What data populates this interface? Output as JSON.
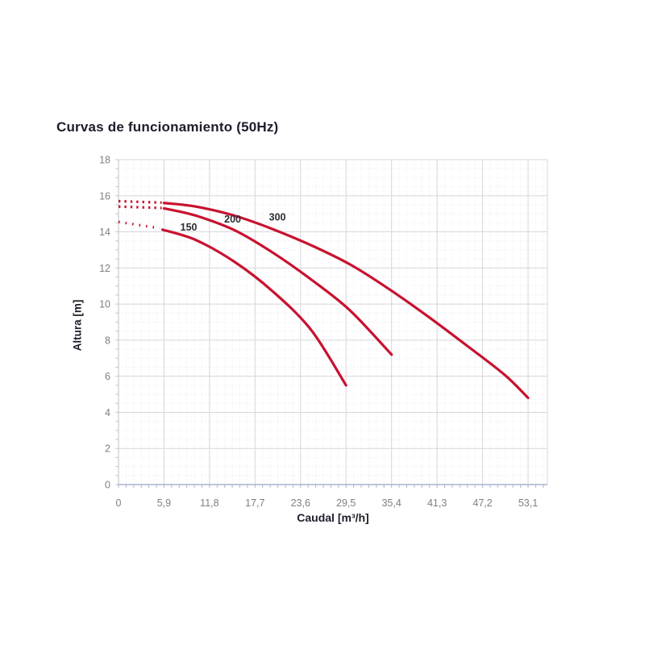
{
  "title": "Curvas de funcionamiento (50Hz)",
  "chart_data": {
    "type": "line",
    "title": "Curvas de funcionamiento (50Hz)",
    "xlabel": "Caudal [m³/h]",
    "ylabel": "Altura [m]",
    "xlim": [
      0,
      55.6
    ],
    "ylim": [
      0,
      18
    ],
    "x_ticks": {
      "values": [
        0,
        5.9,
        11.8,
        17.7,
        23.6,
        29.5,
        35.4,
        41.3,
        47.2,
        53.1
      ],
      "labels": [
        "0",
        "5,9",
        "11,8",
        "17,7",
        "23,6",
        "29,5",
        "35,4",
        "41,3",
        "47,2",
        "53,1"
      ]
    },
    "y_ticks": {
      "values": [
        0,
        2,
        4,
        6,
        8,
        10,
        12,
        14,
        16,
        18
      ],
      "labels": [
        "0",
        "2",
        "4",
        "6",
        "8",
        "10",
        "12",
        "14",
        "16",
        "18"
      ]
    },
    "grid": {
      "major": true,
      "minor": true,
      "x_minor_step": 0.9833,
      "y_minor_step": 0.5
    },
    "legend_position": "labels-on-curves",
    "curve_color": "#c8122f",
    "series": [
      {
        "name": "150",
        "label_pos": {
          "x": 9.1,
          "y": 14.25
        },
        "dotted": [
          [
            0,
            14.55
          ],
          [
            5.35,
            14.2
          ]
        ],
        "solid": [
          [
            5.7,
            14.12
          ],
          [
            10,
            13.55
          ],
          [
            15,
            12.35
          ],
          [
            20,
            10.7
          ],
          [
            25,
            8.55
          ],
          [
            29.5,
            5.5
          ]
        ]
      },
      {
        "name": "200",
        "label_pos": {
          "x": 14.8,
          "y": 14.7
        },
        "dotted": [
          [
            0,
            15.4
          ],
          [
            5.6,
            15.32
          ]
        ],
        "solid": [
          [
            5.9,
            15.3
          ],
          [
            10,
            14.9
          ],
          [
            15,
            14.1
          ],
          [
            20,
            12.85
          ],
          [
            25,
            11.35
          ],
          [
            30,
            9.65
          ],
          [
            35.4,
            7.2
          ]
        ]
      },
      {
        "name": "300",
        "label_pos": {
          "x": 20.6,
          "y": 14.8
        },
        "dotted": [
          [
            0,
            15.7
          ],
          [
            5.6,
            15.62
          ]
        ],
        "solid": [
          [
            5.9,
            15.6
          ],
          [
            10,
            15.4
          ],
          [
            15,
            14.9
          ],
          [
            20,
            14.15
          ],
          [
            25,
            13.25
          ],
          [
            30,
            12.2
          ],
          [
            35,
            10.85
          ],
          [
            40,
            9.35
          ],
          [
            45,
            7.75
          ],
          [
            50,
            6.1
          ],
          [
            53.1,
            4.8
          ]
        ]
      }
    ],
    "colors": {
      "curve": "#c8122f",
      "grid_major": "#d7d7dd",
      "grid_minor": "#ecebf1",
      "axis_bottom": "#a9b4cf",
      "axis_left": "#c7cad2",
      "tick_text": "#7e7e85",
      "heading_text": "#1d1d2b",
      "curve_label_text": "#2c2c34",
      "background": "#ffffff"
    }
  }
}
